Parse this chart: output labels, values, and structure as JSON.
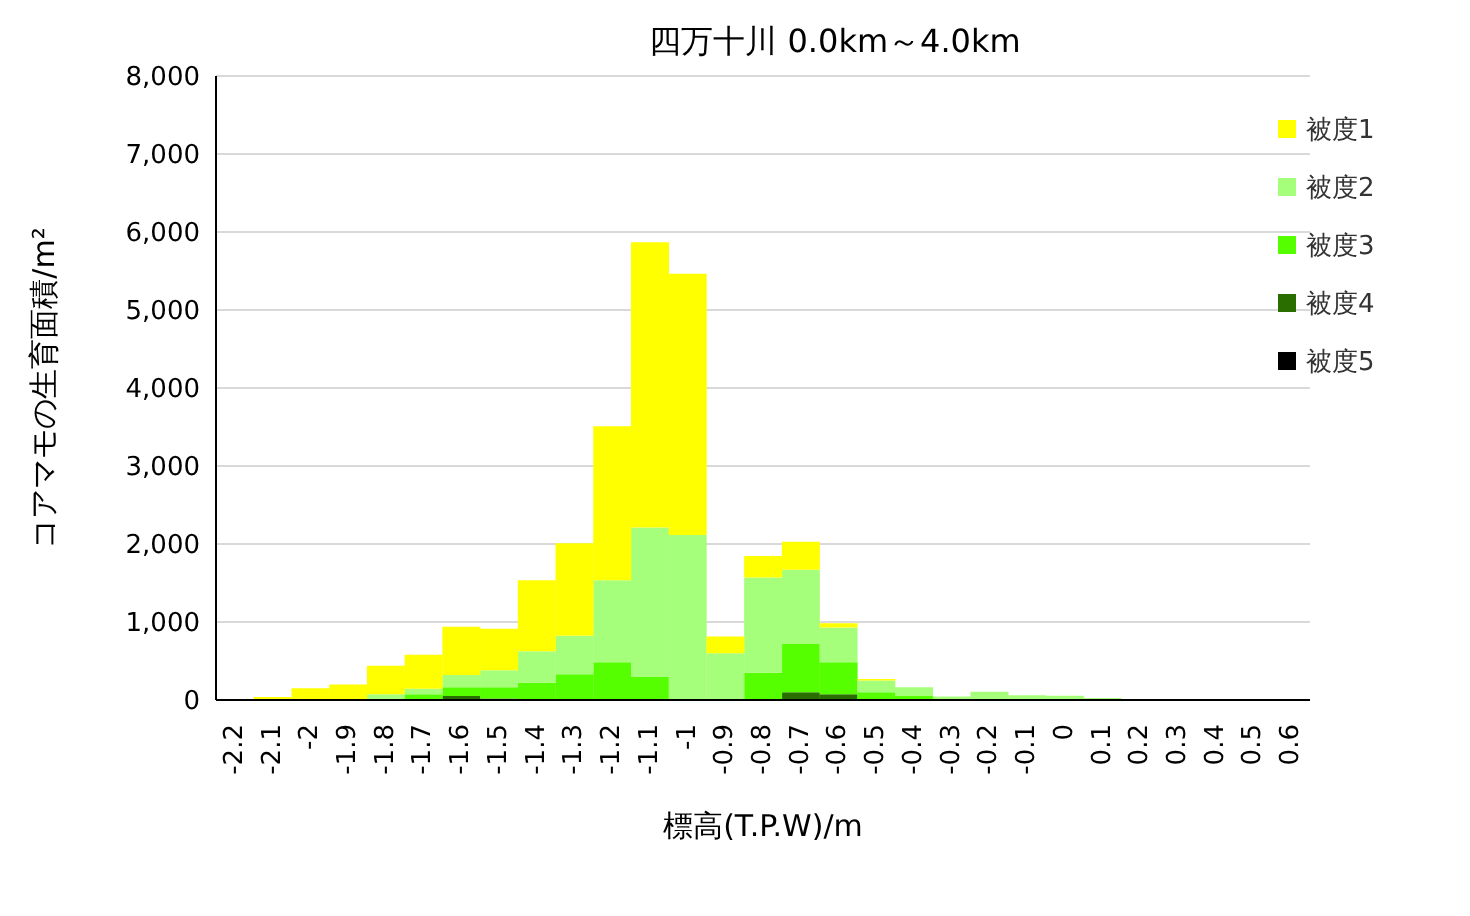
{
  "chart_data": {
    "type": "bar",
    "title": "四万十川 0.0km～4.0km",
    "xlabel": "標高(T.P.W)/m",
    "ylabel": "コアマモの生育面積/m²",
    "categories": [
      "-2.2",
      "-2.1",
      "-2",
      "-1.9",
      "-1.8",
      "-1.7",
      "-1.6",
      "-1.5",
      "-1.4",
      "-1.3",
      "-1.2",
      "-1.1",
      "-1",
      "-0.9",
      "-0.8",
      "-0.7",
      "-0.6",
      "-0.5",
      "-0.4",
      "-0.3",
      "-0.2",
      "-0.1",
      "0",
      "0.1",
      "0.2",
      "0.3",
      "0.4",
      "0.5",
      "0.6"
    ],
    "stacked": true,
    "series": [
      {
        "name": "被度5",
        "color": "#000000",
        "values": [
          0,
          0,
          0,
          0,
          0,
          0,
          0,
          0,
          0,
          0,
          0,
          0,
          0,
          0,
          0,
          0,
          0,
          0,
          0,
          0,
          0,
          0,
          0,
          0,
          0,
          0,
          0,
          0,
          0
        ]
      },
      {
        "name": "被度4",
        "color": "#2a6e00",
        "values": [
          0,
          0,
          0,
          0,
          0,
          0,
          50,
          20,
          null,
          0,
          0,
          0,
          0,
          0,
          0,
          100,
          75,
          0,
          0,
          0,
          0,
          0,
          0,
          0,
          0,
          0,
          0,
          0,
          0
        ]
      },
      {
        "name": "被度3",
        "color": "#55ff00",
        "values": [
          0,
          0,
          0,
          0,
          20,
          75,
          115,
          145,
          220,
          330,
          485,
          300,
          0,
          0,
          350,
          625,
          410,
          100,
          50,
          null,
          0,
          0,
          0,
          0,
          0,
          0,
          0,
          0,
          0
        ]
      },
      {
        "name": "被度2",
        "color": "#a6ff7a",
        "values": [
          0,
          0,
          null,
          null,
          55,
          70,
          155,
          215,
          405,
          495,
          1050,
          1910,
          2115,
          600,
          1220,
          945,
          445,
          150,
          115,
          45,
          105,
          60,
          55,
          25,
          null,
          0,
          0,
          0,
          0
        ]
      },
      {
        "name": "被度1",
        "color": "#ffff00",
        "values": [
          0,
          40,
          150,
          200,
          365,
          435,
          620,
          535,
          910,
          1185,
          1975,
          3660,
          3350,
          215,
          275,
          360,
          55,
          20,
          0,
          0,
          0,
          0,
          0,
          0,
          0,
          0,
          0,
          0,
          0
        ]
      }
    ],
    "ylim": [
      0,
      8000
    ],
    "yticks": [
      {
        "value": 0,
        "label": "0"
      },
      {
        "value": 1000,
        "label": "1,000"
      },
      {
        "value": 2000,
        "label": "2,000"
      },
      {
        "value": 3000,
        "label": "3,000"
      },
      {
        "value": 4000,
        "label": "4,000"
      },
      {
        "value": 5000,
        "label": "5,000"
      },
      {
        "value": 6000,
        "label": "6,000"
      },
      {
        "value": 7000,
        "label": "7,000"
      },
      {
        "value": 8000,
        "label": "8,000"
      }
    ],
    "grid": "y",
    "legend": "top right"
  }
}
